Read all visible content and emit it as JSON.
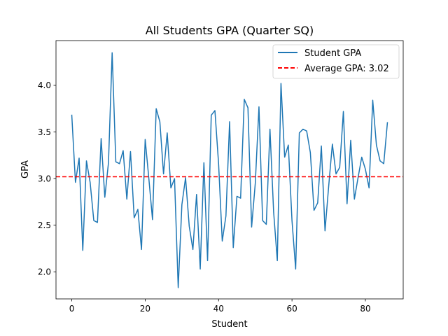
{
  "chart_data": {
    "type": "line",
    "title": "All Students GPA (Quarter SQ)",
    "xlabel": "Student",
    "ylabel": "GPA",
    "xlim": [
      -4.3,
      90.3
    ],
    "ylim": [
      1.71,
      4.48
    ],
    "xticks": [
      0,
      20,
      40,
      60,
      80
    ],
    "yticks": [
      2.0,
      2.5,
      3.0,
      3.5,
      4.0
    ],
    "ytick_labels": [
      "2.0",
      "2.5",
      "3.0",
      "3.5",
      "4.0"
    ],
    "grid": false,
    "legend_position": "top-right",
    "series": [
      {
        "name": "Student GPA",
        "color": "#1f77b4",
        "style": "solid",
        "x": [
          0,
          1,
          2,
          3,
          4,
          5,
          6,
          7,
          8,
          9,
          10,
          11,
          12,
          13,
          14,
          15,
          16,
          17,
          18,
          19,
          20,
          21,
          22,
          23,
          24,
          25,
          26,
          27,
          28,
          29,
          30,
          31,
          32,
          33,
          34,
          35,
          36,
          37,
          38,
          39,
          40,
          41,
          42,
          43,
          44,
          45,
          46,
          47,
          48,
          49,
          50,
          51,
          52,
          53,
          54,
          55,
          56,
          57,
          58,
          59,
          60,
          61,
          62,
          63,
          64,
          65,
          66,
          67,
          68,
          69,
          70,
          71,
          72,
          73,
          74,
          75,
          76,
          77,
          78,
          79,
          80,
          81,
          82,
          83,
          84,
          85,
          86
        ],
        "values": [
          3.68,
          2.96,
          3.22,
          2.23,
          3.19,
          2.96,
          2.55,
          2.53,
          3.43,
          2.8,
          3.17,
          4.35,
          3.18,
          3.16,
          3.3,
          2.78,
          3.29,
          2.58,
          2.67,
          2.24,
          3.42,
          3.0,
          2.56,
          3.75,
          3.61,
          3.05,
          3.49,
          2.9,
          3.0,
          1.83,
          2.72,
          3.01,
          2.49,
          2.24,
          2.83,
          2.03,
          3.17,
          2.12,
          3.68,
          3.73,
          3.16,
          2.33,
          2.6,
          3.61,
          2.26,
          2.81,
          2.79,
          3.85,
          3.76,
          2.48,
          2.95,
          3.77,
          2.55,
          2.51,
          3.53,
          2.64,
          2.12,
          4.02,
          3.23,
          3.36,
          2.55,
          2.03,
          3.49,
          3.53,
          3.51,
          3.28,
          2.66,
          2.74,
          3.35,
          2.44,
          2.92,
          3.37,
          3.05,
          3.12,
          3.72,
          2.73,
          3.41,
          2.78,
          3.01,
          3.23,
          3.1,
          2.9,
          3.84,
          3.36,
          3.19,
          3.16,
          3.6
        ]
      },
      {
        "name": "Average GPA: 3.02",
        "color": "#ff0000",
        "style": "dashed",
        "constant": 3.02
      }
    ]
  }
}
